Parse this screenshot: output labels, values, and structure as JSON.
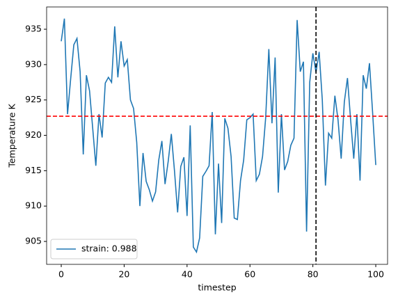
{
  "chart_data": {
    "type": "line",
    "x_label": "timestep",
    "y_label": "Temperature K",
    "x": [
      0,
      1,
      2,
      3,
      4,
      5,
      6,
      7,
      8,
      9,
      10,
      11,
      12,
      13,
      14,
      15,
      16,
      17,
      18,
      19,
      20,
      21,
      22,
      23,
      24,
      25,
      26,
      27,
      28,
      29,
      30,
      31,
      32,
      33,
      34,
      35,
      36,
      37,
      38,
      39,
      40,
      41,
      42,
      43,
      44,
      45,
      46,
      47,
      48,
      49,
      50,
      51,
      52,
      53,
      54,
      55,
      56,
      57,
      58,
      59,
      60,
      61,
      62,
      63,
      64,
      65,
      66,
      67,
      68,
      69,
      70,
      71,
      72,
      73,
      74,
      75,
      76,
      77,
      78,
      79,
      80,
      81,
      82,
      83,
      84,
      85,
      86,
      87,
      88,
      89,
      90,
      91,
      92,
      93,
      94,
      95,
      96,
      97,
      98,
      99,
      100
    ],
    "series": [
      {
        "name": "strain: 0.988",
        "color": "#1f77b4",
        "values": [
          933.3,
          936.5,
          923,
          928,
          932.8,
          933.7,
          929,
          917.3,
          928.5,
          926.3,
          921,
          915.7,
          923,
          919.7,
          927.4,
          928.2,
          927.5,
          935.4,
          928.2,
          933.3,
          929.8,
          930.7,
          925,
          923.8,
          919,
          910,
          917.5,
          913.5,
          912.3,
          910.7,
          912,
          916.5,
          919.2,
          913.1,
          916.3,
          920.2,
          915,
          909.1,
          915.6,
          916.9,
          908.6,
          921.4,
          904.2,
          903.5,
          905.5,
          914.2,
          914.9,
          915.7,
          923.3,
          906,
          916,
          907.6,
          922.4,
          921,
          917,
          908.3,
          908.1,
          913.6,
          916.5,
          922.2,
          922.5,
          923,
          913.6,
          914.5,
          917,
          922.5,
          932.2,
          921.7,
          931,
          911.9,
          923,
          915.1,
          916.3,
          918.6,
          919.6,
          936.3,
          929,
          930.4,
          906.4,
          927.5,
          931.6,
          928.9,
          931.8,
          925,
          912.9,
          920.3,
          919.6,
          925.6,
          922.2,
          916.7,
          924.7,
          928.1,
          922.2,
          916.7,
          923,
          913.6,
          928.5,
          926.6,
          930.2,
          923.2,
          915.8
        ]
      }
    ],
    "hline": {
      "value": 922.7,
      "color": "#ff0000"
    },
    "vline": {
      "value": 81,
      "color": "#000000"
    },
    "xlim": [
      -4.65,
      103.75
    ],
    "xticks": [
      0,
      20,
      40,
      60,
      80,
      100
    ],
    "ylim": [
      901.76,
      938.15
    ],
    "yticks": [
      905,
      910,
      915,
      920,
      925,
      930,
      935
    ],
    "legend": "lower left",
    "grid": false
  }
}
